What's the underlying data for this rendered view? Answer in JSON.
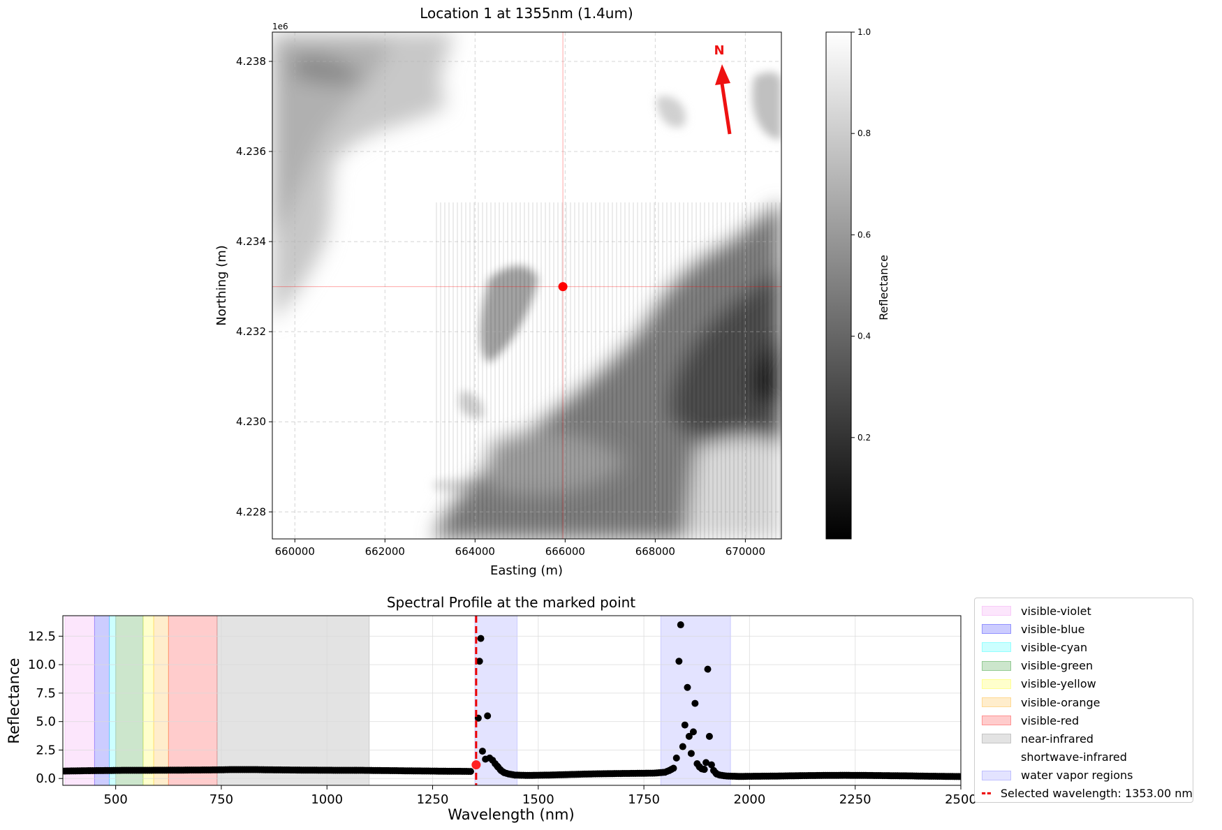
{
  "map": {
    "title": "Location 1 at 1355nm (1.4um)",
    "xlabel": "Easting (m)",
    "ylabel": "Northing (m)",
    "y_offset_label": "1e6",
    "xlim": [
      659500,
      670800
    ],
    "ylim": [
      4227400,
      4238650
    ],
    "xticks": [
      "660000",
      "662000",
      "664000",
      "666000",
      "668000",
      "670000"
    ],
    "xtick_values": [
      660000,
      662000,
      664000,
      666000,
      668000,
      670000
    ],
    "yticks": [
      "4.228",
      "4.230",
      "4.232",
      "4.234",
      "4.236",
      "4.238"
    ],
    "ytick_values": [
      4228000,
      4230000,
      4232000,
      4234000,
      4236000,
      4238000
    ],
    "marker": {
      "easting": 665950,
      "northing": 4233000,
      "color": "#ff0000"
    },
    "north_label": "N",
    "north_color": "#ee1111",
    "colorbar": {
      "label": "Reflectance",
      "range": [
        0.0,
        1.0
      ],
      "ticks": [
        "0.2",
        "0.4",
        "0.6",
        "0.8",
        "1.0"
      ],
      "tick_values": [
        0.2,
        0.4,
        0.6,
        0.8,
        1.0
      ],
      "colormap": "gray"
    }
  },
  "chart_data": {
    "type": "scatter",
    "title": "Spectral Profile at the marked point",
    "xlabel": "Wavelength (nm)",
    "ylabel": "Reflectance",
    "xlim": [
      375,
      2500
    ],
    "ylim": [
      -0.6,
      14.3
    ],
    "xticks": [
      "500",
      "750",
      "1000",
      "1250",
      "1500",
      "1750",
      "2000",
      "2250",
      "2500"
    ],
    "xtick_values": [
      500,
      750,
      1000,
      1250,
      1500,
      1750,
      2000,
      2250,
      2500
    ],
    "yticks": [
      "0.0",
      "2.5",
      "5.0",
      "7.5",
      "10.0",
      "12.5"
    ],
    "ytick_values": [
      0,
      2.5,
      5,
      7.5,
      10,
      12.5
    ],
    "grid": true,
    "legend_position": "outside right",
    "regions": [
      {
        "name": "visible-violet",
        "range": [
          380,
          450
        ],
        "color": "#ee82ee",
        "alpha": 0.2
      },
      {
        "name": "visible-blue",
        "range": [
          450,
          485
        ],
        "color": "#0000ff",
        "alpha": 0.2
      },
      {
        "name": "visible-cyan",
        "range": [
          485,
          500
        ],
        "color": "#00ffff",
        "alpha": 0.2
      },
      {
        "name": "visible-green",
        "range": [
          500,
          565
        ],
        "color": "#008000",
        "alpha": 0.2
      },
      {
        "name": "visible-yellow",
        "range": [
          565,
          590
        ],
        "color": "#ffff00",
        "alpha": 0.2
      },
      {
        "name": "visible-orange",
        "range": [
          590,
          625
        ],
        "color": "#ffa500",
        "alpha": 0.2
      },
      {
        "name": "visible-red",
        "range": [
          625,
          740
        ],
        "color": "#ff0000",
        "alpha": 0.2
      },
      {
        "name": "near-infrared",
        "range": [
          740,
          1100
        ],
        "color": "#808080",
        "alpha": 0.22
      },
      {
        "name": "shortwave-infrared",
        "range": [
          1100,
          2500
        ],
        "color": "#ffffff",
        "alpha": 0.0
      },
      {
        "name": "water vapor regions",
        "range": [
          1350,
          1450
        ],
        "color": "#0000ff",
        "alpha": 0.11
      },
      {
        "name": "water vapor regions",
        "range": [
          1790,
          1955
        ],
        "color": "#0000ff",
        "alpha": 0.11
      }
    ],
    "selected_wavelength": 1353,
    "selected_label": "Selected wavelength: 1353.00 nm",
    "selected_point": {
      "x": 1353,
      "y": 1.2
    },
    "series": [
      {
        "points": [
          [
            375,
            0.65
          ],
          [
            425,
            0.68
          ],
          [
            475,
            0.7
          ],
          [
            525,
            0.72
          ],
          [
            575,
            0.72
          ],
          [
            625,
            0.73
          ],
          [
            675,
            0.74
          ],
          [
            725,
            0.75
          ],
          [
            775,
            0.78
          ],
          [
            825,
            0.78
          ],
          [
            875,
            0.76
          ],
          [
            925,
            0.74
          ],
          [
            975,
            0.73
          ],
          [
            1025,
            0.72
          ],
          [
            1075,
            0.72
          ],
          [
            1125,
            0.7
          ],
          [
            1175,
            0.68
          ],
          [
            1225,
            0.66
          ],
          [
            1275,
            0.64
          ],
          [
            1320,
            0.63
          ],
          [
            1340,
            0.62
          ],
          [
            1358,
            5.3
          ],
          [
            1361,
            10.3
          ],
          [
            1364,
            12.3
          ],
          [
            1368,
            2.4
          ],
          [
            1375,
            1.7
          ],
          [
            1380,
            5.5
          ],
          [
            1385,
            1.8
          ],
          [
            1392,
            1.6
          ],
          [
            1398,
            1.3
          ],
          [
            1405,
            1.0
          ],
          [
            1412,
            0.7
          ],
          [
            1420,
            0.5
          ],
          [
            1430,
            0.4
          ],
          [
            1445,
            0.3
          ],
          [
            1475,
            0.27
          ],
          [
            1525,
            0.3
          ],
          [
            1575,
            0.35
          ],
          [
            1625,
            0.4
          ],
          [
            1675,
            0.43
          ],
          [
            1725,
            0.45
          ],
          [
            1775,
            0.47
          ],
          [
            1800,
            0.55
          ],
          [
            1810,
            0.7
          ],
          [
            1820,
            0.9
          ],
          [
            1827,
            1.8
          ],
          [
            1833,
            10.3
          ],
          [
            1837,
            13.5
          ],
          [
            1842,
            2.8
          ],
          [
            1847,
            4.7
          ],
          [
            1853,
            8.0
          ],
          [
            1857,
            3.7
          ],
          [
            1862,
            2.2
          ],
          [
            1867,
            4.1
          ],
          [
            1871,
            6.6
          ],
          [
            1876,
            1.3
          ],
          [
            1882,
            1.0
          ],
          [
            1887,
            0.85
          ],
          [
            1893,
            0.8
          ],
          [
            1897,
            1.4
          ],
          [
            1901,
            9.6
          ],
          [
            1905,
            3.7
          ],
          [
            1910,
            1.2
          ],
          [
            1915,
            0.7
          ],
          [
            1922,
            0.4
          ],
          [
            1930,
            0.3
          ],
          [
            1945,
            0.22
          ],
          [
            1975,
            0.18
          ],
          [
            2025,
            0.2
          ],
          [
            2075,
            0.22
          ],
          [
            2125,
            0.25
          ],
          [
            2175,
            0.27
          ],
          [
            2225,
            0.28
          ],
          [
            2275,
            0.27
          ],
          [
            2325,
            0.25
          ],
          [
            2375,
            0.23
          ],
          [
            2425,
            0.2
          ],
          [
            2475,
            0.18
          ],
          [
            2500,
            0.17
          ]
        ]
      }
    ]
  }
}
